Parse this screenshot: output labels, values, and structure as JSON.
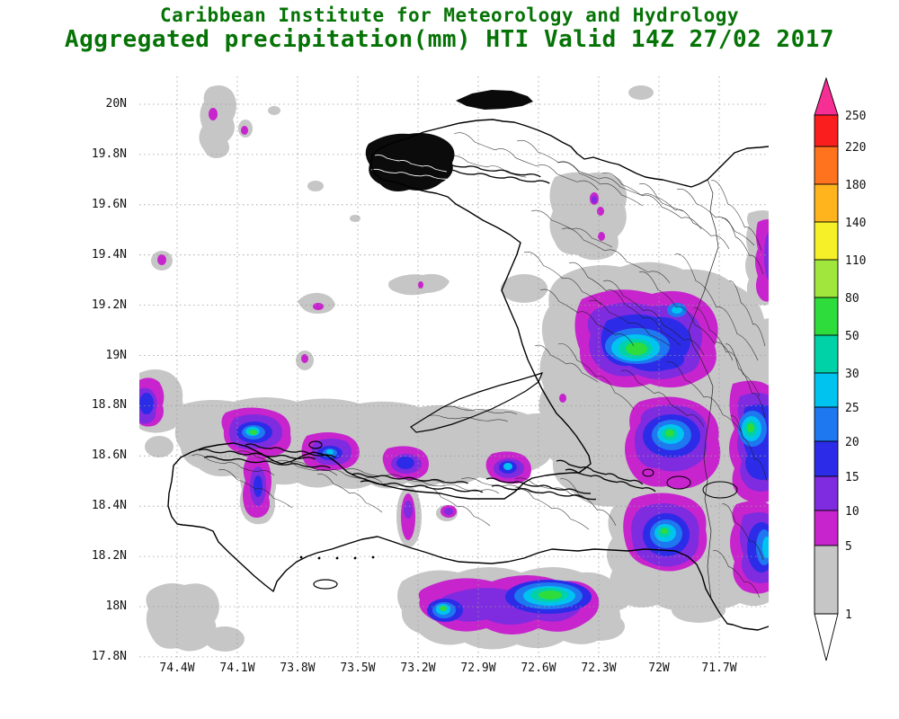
{
  "header": {
    "line1": "Caribbean Institute for Meteorology and Hydrology",
    "line2": "Aggregated precipitation(mm) HTI Valid 14Z 27/02 2017",
    "title_color": "#067306"
  },
  "product": {
    "variable": "Aggregated precipitation",
    "units": "mm",
    "region": "HTI",
    "valid": "14Z 27/02 2017"
  },
  "axes": {
    "lat_ticks": [
      "20N",
      "19.8N",
      "19.6N",
      "19.4N",
      "19.2N",
      "19N",
      "18.8N",
      "18.6N",
      "18.4N",
      "18.2N",
      "18N",
      "17.8N"
    ],
    "lon_ticks": [
      "74.4W",
      "74.1W",
      "73.8W",
      "73.5W",
      "73.2W",
      "72.9W",
      "72.6W",
      "72.3W",
      "72W",
      "71.7W"
    ]
  },
  "colorbar": {
    "units": "mm",
    "tick_labels": [
      "250",
      "220",
      "180",
      "140",
      "110",
      "80",
      "50",
      "30",
      "25",
      "20",
      "15",
      "10",
      "5",
      "1"
    ],
    "segments": [
      {
        "range": "> 250",
        "color": "#F72E93"
      },
      {
        "range": "220-250",
        "color": "#FB1E1E"
      },
      {
        "range": "180-220",
        "color": "#FF731E"
      },
      {
        "range": "140-180",
        "color": "#FFB41E"
      },
      {
        "range": "110-140",
        "color": "#F5F028"
      },
      {
        "range": "80-110",
        "color": "#A0E63C"
      },
      {
        "range": "50-80",
        "color": "#2EDC3C"
      },
      {
        "range": "30-50",
        "color": "#00D2A8"
      },
      {
        "range": "25-30",
        "color": "#00C3F0"
      },
      {
        "range": "20-25",
        "color": "#1E78F0"
      },
      {
        "range": "15-20",
        "color": "#2C2CE8"
      },
      {
        "range": "10-15",
        "color": "#7F2BE0"
      },
      {
        "range": "5-10",
        "color": "#C724CD"
      },
      {
        "range": "1-5",
        "color": "#C6C6C6"
      },
      {
        "range": "< 1",
        "color": "#FFFFFF"
      }
    ]
  }
}
